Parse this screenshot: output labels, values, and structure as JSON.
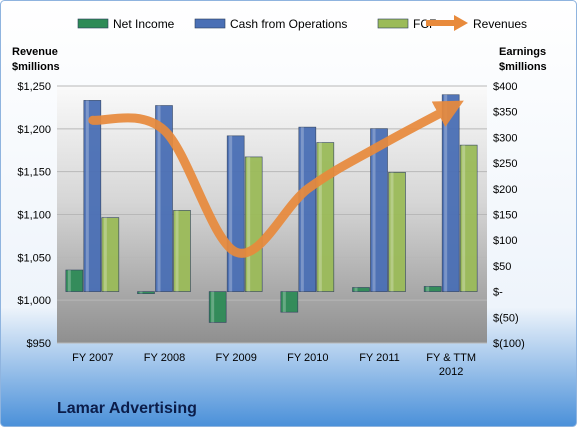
{
  "chart_data": {
    "type": "bar",
    "title": "Lamar Advertising",
    "categories": [
      "FY 2007",
      "FY 2008",
      "FY 2009",
      "FY 2010",
      "FY 2011",
      "FY & TTM|2012"
    ],
    "left_axis": {
      "label_lines": [
        "Revenue",
        "$millions"
      ],
      "ticks": [
        "$950",
        "$1,000",
        "$1,050",
        "$1,100",
        "$1,150",
        "$1,200",
        "$1,250"
      ],
      "ylim": [
        950,
        1250
      ]
    },
    "right_axis": {
      "label_lines": [
        "Earnings",
        "$millions"
      ],
      "ticks": [
        "$(100)",
        "$(50)",
        "$-",
        "$50",
        "$100",
        "$150",
        "$200",
        "$250",
        "$300",
        "$350",
        "$400"
      ],
      "ylim": [
        -100,
        400
      ]
    },
    "series": [
      {
        "name": "Net Income",
        "axis": "right",
        "kind": "bar",
        "color": "#2e8b57",
        "values": [
          42,
          -4,
          -60,
          -40,
          8,
          10
        ]
      },
      {
        "name": "Cash from Operations",
        "axis": "right",
        "kind": "bar",
        "color": "#4a6fb5",
        "values": [
          372,
          362,
          303,
          320,
          317,
          383
        ]
      },
      {
        "name": "FCF",
        "axis": "right",
        "kind": "bar",
        "color": "#9bbb59",
        "values": [
          144,
          158,
          262,
          290,
          232,
          285
        ]
      },
      {
        "name": "Revenues",
        "axis": "left",
        "kind": "line",
        "color": "#e88a3c",
        "values": [
          1210,
          1198,
          1056,
          1130,
          1180,
          1225
        ]
      }
    ],
    "grid": true,
    "legend_position": "top"
  }
}
